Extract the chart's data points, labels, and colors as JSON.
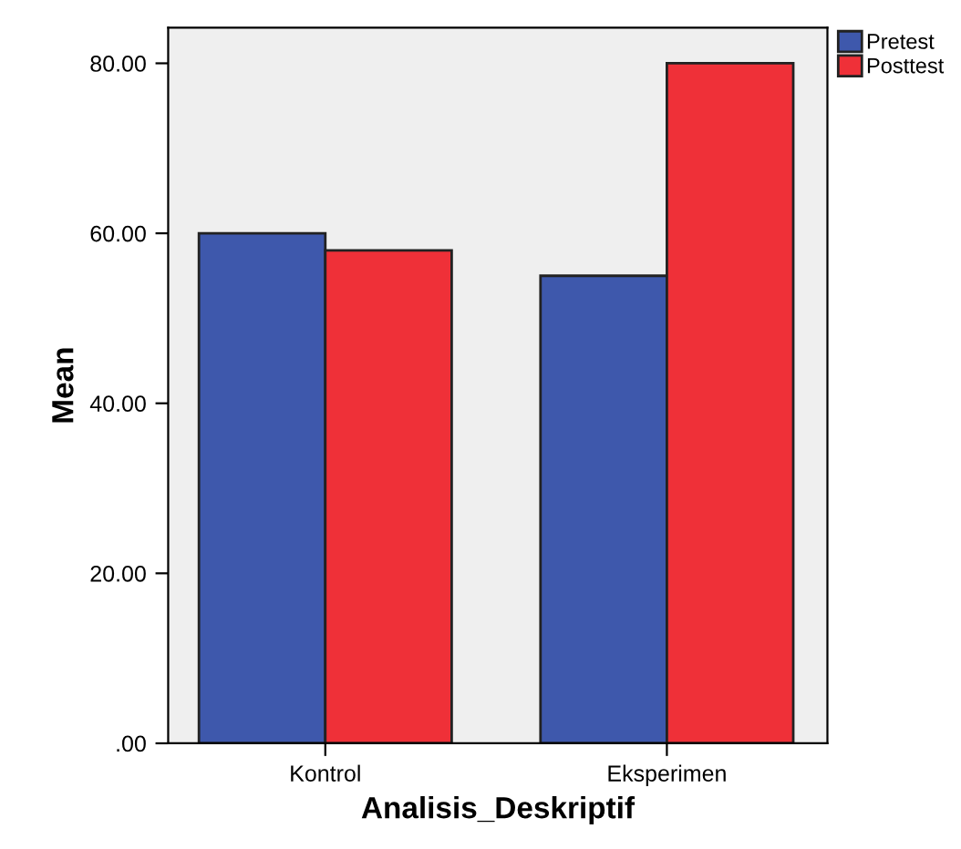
{
  "chart_data": {
    "type": "bar",
    "xlabel": "Analisis_Deskriptif",
    "ylabel": "Mean",
    "categories": [
      "Kontrol",
      "Eksperimen"
    ],
    "series": [
      {
        "name": "Pretest",
        "color": "#3e58ac",
        "values": [
          60,
          55
        ]
      },
      {
        "name": "Posttest",
        "color": "#ef3038",
        "values": [
          58,
          80
        ]
      }
    ],
    "ylim": [
      0,
      84.2
    ],
    "yticks": [
      {
        "value": 0,
        "label": ".00"
      },
      {
        "value": 20,
        "label": "20.00"
      },
      {
        "value": 40,
        "label": "40.00"
      },
      {
        "value": 60,
        "label": "60.00"
      },
      {
        "value": 80,
        "label": "80.00"
      }
    ],
    "grid": false,
    "legend": "top right"
  }
}
